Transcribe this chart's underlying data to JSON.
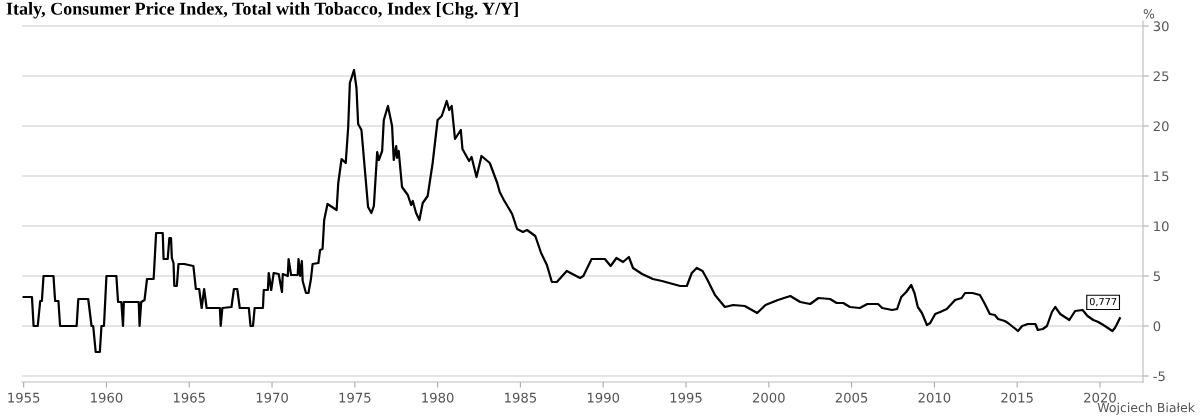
{
  "chart_data": {
    "type": "line",
    "title": "Italy, Consumer Price Index, Total with Tobacco, Index [Chg. Y/Y]",
    "ylabel": "%",
    "xlim": [
      1954.9,
      2022.6
    ],
    "ylim": [
      -5.6,
      30.5
    ],
    "xticks": [
      1955,
      1960,
      1965,
      1970,
      1975,
      1980,
      1985,
      1990,
      1995,
      2000,
      2005,
      2010,
      2015,
      2020
    ],
    "yticks": [
      -5,
      0,
      5,
      10,
      15,
      20,
      25,
      30
    ],
    "grid": "y",
    "legend": false,
    "marker": "none",
    "line_style": "solid",
    "series": [
      {
        "color": "#000000",
        "x": [
          1955.0,
          1955.5,
          1955.6,
          1955.85,
          1956.0,
          1956.1,
          1956.2,
          1956.8,
          1956.9,
          1957.1,
          1957.2,
          1958.2,
          1958.3,
          1958.9,
          1959.1,
          1959.2,
          1959.35,
          1959.6,
          1959.7,
          1959.85,
          1960.0,
          1960.6,
          1960.7,
          1960.9,
          1961.0,
          1961.05,
          1961.95,
          1962.0,
          1962.1,
          1962.3,
          1962.45,
          1962.85,
          1963.0,
          1963.4,
          1963.45,
          1963.7,
          1963.8,
          1963.9,
          1963.95,
          1964.05,
          1964.1,
          1964.25,
          1964.35,
          1964.7,
          1965.25,
          1965.4,
          1965.6,
          1965.75,
          1965.9,
          1966.05,
          1966.85,
          1966.9,
          1967.0,
          1967.55,
          1967.7,
          1967.9,
          1968.05,
          1968.6,
          1968.7,
          1968.85,
          1968.95,
          1969.45,
          1969.5,
          1969.75,
          1969.8,
          1969.95,
          1970.1,
          1970.4,
          1970.6,
          1970.65,
          1970.95,
          1971.0,
          1971.15,
          1971.55,
          1971.6,
          1971.7,
          1971.8,
          1971.85,
          1972.05,
          1972.2,
          1972.35,
          1972.45,
          1972.8,
          1972.9,
          1973.05,
          1973.15,
          1973.35,
          1973.9,
          1974.0,
          1974.2,
          1974.45,
          1974.6,
          1974.7,
          1974.95,
          1975.1,
          1975.2,
          1975.4,
          1975.8,
          1976.0,
          1976.15,
          1976.35,
          1976.45,
          1976.65,
          1976.75,
          1977.0,
          1977.25,
          1977.35,
          1977.5,
          1977.55,
          1977.65,
          1977.85,
          1978.2,
          1978.4,
          1978.5,
          1978.7,
          1978.9,
          1979.1,
          1979.4,
          1979.7,
          1980.0,
          1980.25,
          1980.55,
          1980.7,
          1980.85,
          1981.05,
          1981.4,
          1981.5,
          1981.9,
          1982.05,
          1982.35,
          1982.65,
          1983.15,
          1983.6,
          1983.75,
          1984.0,
          1984.5,
          1984.8,
          1985.15,
          1985.4,
          1985.9,
          1986.25,
          1986.6,
          1986.9,
          1987.2,
          1987.8,
          1988.6,
          1988.8,
          1989.3,
          1990.1,
          1990.45,
          1990.8,
          1991.2,
          1991.55,
          1991.8,
          1992.35,
          1993.0,
          1993.55,
          1994.65,
          1995.05,
          1995.35,
          1995.65,
          1996.0,
          1996.3,
          1996.75,
          1997.35,
          1997.85,
          1998.55,
          1999.3,
          1999.8,
          2000.55,
          2001.3,
          2001.9,
          2002.5,
          2003.0,
          2003.7,
          2004.1,
          2004.5,
          2004.9,
          2005.5,
          2005.95,
          2006.6,
          2006.85,
          2007.45,
          2007.75,
          2008.0,
          2008.3,
          2008.6,
          2008.8,
          2009.0,
          2009.25,
          2009.55,
          2009.75,
          2010.05,
          2010.35,
          2010.75,
          2011.25,
          2011.65,
          2011.85,
          2012.3,
          2012.75,
          2013.05,
          2013.35,
          2013.65,
          2013.85,
          2014.25,
          2014.45,
          2014.75,
          2015.05,
          2015.3,
          2015.65,
          2016.1,
          2016.25,
          2016.55,
          2016.8,
          2017.1,
          2017.3,
          2017.6,
          2018.15,
          2018.5,
          2018.95,
          2019.25,
          2019.6,
          2019.9,
          2020.3,
          2020.75,
          2020.9,
          2021.0,
          2021.2
        ],
        "values": [
          2.9,
          2.9,
          0,
          0,
          2.5,
          2.5,
          5,
          5,
          2.5,
          2.5,
          0,
          0,
          2.7,
          2.7,
          0,
          0,
          -2.6,
          -2.6,
          0,
          0,
          5,
          5,
          2.4,
          2.4,
          0,
          2.4,
          2.4,
          0,
          2.4,
          2.6,
          4.7,
          4.7,
          9.3,
          9.3,
          6.7,
          6.7,
          8.8,
          8.8,
          6.8,
          6.3,
          4.0,
          4.0,
          6.2,
          6.2,
          6.0,
          3.7,
          3.7,
          1.8,
          3.7,
          1.8,
          1.8,
          0,
          1.8,
          1.9,
          3.7,
          3.7,
          1.8,
          1.8,
          0,
          0,
          1.8,
          1.8,
          3.6,
          3.6,
          5.3,
          3.6,
          5.3,
          5.2,
          3.4,
          5.2,
          5.0,
          6.7,
          5.1,
          5.1,
          6.7,
          5.0,
          6.5,
          4.5,
          3.3,
          3.3,
          4.7,
          6.2,
          6.3,
          7.6,
          7.7,
          10.6,
          12.2,
          11.6,
          14.3,
          16.7,
          16.3,
          19.9,
          24.3,
          25.6,
          23.8,
          20.2,
          19.6,
          11.9,
          11.3,
          12.0,
          17.4,
          16.6,
          17.5,
          20.6,
          22.0,
          20.0,
          16.6,
          18.0,
          16.8,
          17.5,
          13.9,
          13.1,
          12.1,
          12.5,
          11.3,
          10.6,
          12.3,
          13.0,
          16.3,
          20.6,
          21.0,
          22.5,
          21.6,
          22.0,
          18.7,
          19.6,
          17.7,
          16.5,
          16.9,
          14.9,
          17.0,
          16.3,
          14.3,
          13.4,
          12.6,
          11.2,
          9.7,
          9.4,
          9.6,
          9.0,
          7.3,
          6.1,
          4.4,
          4.4,
          5.5,
          4.8,
          5.0,
          6.7,
          6.7,
          6.0,
          6.8,
          6.4,
          6.9,
          5.8,
          5.2,
          4.7,
          4.5,
          4.0,
          4.0,
          5.3,
          5.8,
          5.5,
          4.6,
          3.1,
          1.9,
          2.1,
          2.0,
          1.3,
          2.1,
          2.6,
          3.0,
          2.4,
          2.2,
          2.8,
          2.7,
          2.3,
          2.3,
          1.9,
          1.8,
          2.2,
          2.2,
          1.8,
          1.6,
          1.7,
          2.9,
          3.4,
          4.1,
          3.3,
          1.9,
          1.3,
          0.1,
          0.3,
          1.2,
          1.4,
          1.7,
          2.6,
          2.8,
          3.3,
          3.3,
          3.1,
          2.2,
          1.2,
          1.1,
          0.7,
          0.5,
          0.3,
          -0.1,
          -0.5,
          0.0,
          0.2,
          0.2,
          -0.4,
          -0.3,
          0.0,
          1.4,
          1.9,
          1.2,
          0.6,
          1.5,
          1.6,
          1.0,
          0.6,
          0.4,
          0.0,
          -0.5,
          -0.2,
          0.1,
          0.777
        ],
        "value_labels": [
          null,
          null,
          null,
          null,
          null,
          null,
          null,
          null,
          null,
          null,
          null,
          null,
          null,
          null,
          null,
          null,
          null,
          null,
          null,
          null,
          null,
          null,
          null,
          null,
          null,
          null,
          null,
          null,
          null,
          null,
          null,
          null,
          null,
          null,
          null,
          null,
          null,
          null,
          null,
          null,
          null,
          null,
          null,
          null,
          null,
          null,
          null,
          null,
          null,
          null,
          null,
          null,
          null,
          null,
          null,
          null,
          null,
          null,
          null,
          null,
          null,
          null,
          null,
          null,
          null,
          null,
          null,
          null,
          null,
          null,
          null,
          null,
          null,
          null,
          null,
          null,
          null,
          null,
          null,
          null,
          null,
          null,
          null,
          null,
          null,
          null,
          null,
          null,
          null,
          null,
          null,
          null,
          null,
          null,
          null,
          null,
          null,
          null,
          null,
          null,
          null,
          null,
          null,
          null,
          null,
          null,
          null,
          null,
          null,
          null,
          null,
          null,
          null,
          null,
          null,
          null,
          null,
          null,
          null,
          null,
          null,
          null,
          null,
          null,
          null,
          null,
          null,
          null,
          null,
          null,
          null,
          null,
          null,
          null,
          null,
          null,
          null,
          null,
          null,
          null,
          null,
          null,
          null,
          null,
          null,
          null,
          null,
          null,
          null,
          null,
          null,
          null,
          null,
          null,
          null,
          null,
          null,
          null,
          null,
          null,
          null,
          null,
          null,
          null,
          null,
          null,
          null,
          null,
          null,
          null,
          null,
          null,
          null,
          null,
          null,
          null,
          null,
          null,
          null,
          null,
          null,
          null,
          null,
          null,
          null,
          null,
          null,
          null,
          null,
          null,
          null,
          null,
          null,
          null,
          null,
          null,
          null,
          null,
          null,
          null,
          null,
          null,
          null,
          null,
          null,
          null,
          null,
          null,
          null,
          null,
          null,
          null,
          null,
          null,
          null,
          null,
          null,
          null,
          null,
          null,
          null,
          null,
          null,
          null,
          null,
          null,
          null,
          "0,777"
        ]
      }
    ],
    "annotations": [
      "Wojciech Białek"
    ]
  }
}
